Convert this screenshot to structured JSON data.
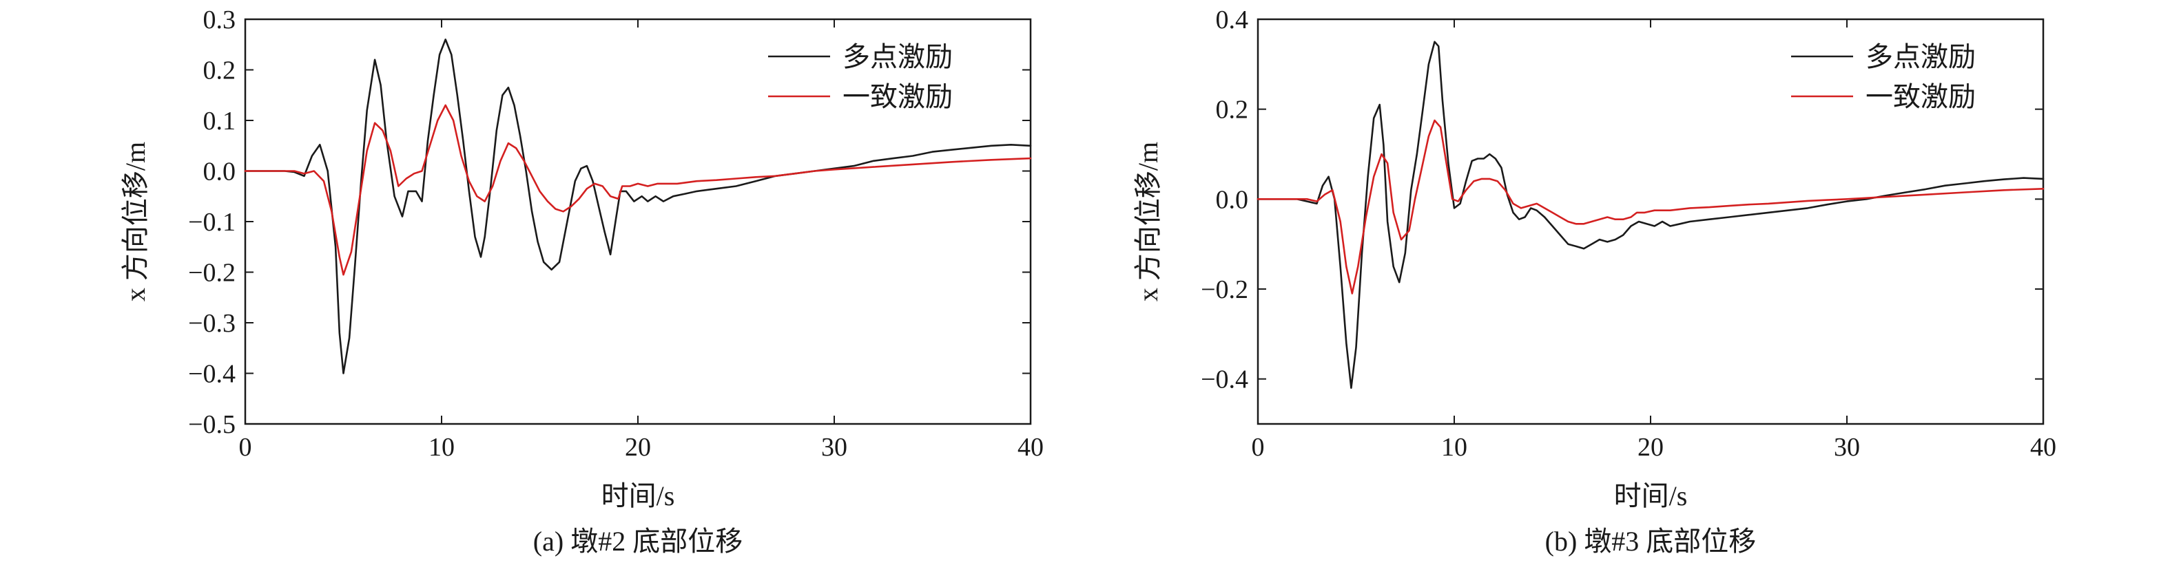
{
  "colors": {
    "multi": "#1a1a1a",
    "uniform": "#d42020",
    "axis": "#1a1a1a"
  },
  "chart_data": [
    {
      "type": "line",
      "caption": "(a) 墩#2 底部位移",
      "xlabel": "时间/s",
      "ylabel": "x 方向位移/m",
      "xlim": [
        0,
        40
      ],
      "ylim": [
        -0.5,
        0.3
      ],
      "xticks": [
        0,
        10,
        20,
        30,
        40
      ],
      "xtick_labels": [
        "0",
        "10",
        "20",
        "30",
        "40"
      ],
      "yticks": [
        0.3,
        0.2,
        0.1,
        0.0,
        -0.1,
        -0.2,
        -0.3,
        -0.4,
        -0.5
      ],
      "ytick_labels": [
        "0.3",
        "0.2",
        "0.1",
        "0.0",
        "−0.1",
        "−0.2",
        "−0.3",
        "−0.4",
        "−0.5"
      ],
      "legend": "top-right",
      "series": [
        {
          "name": "多点激励",
          "key": "multi",
          "x": [
            0,
            2.0,
            2.5,
            3.0,
            3.4,
            3.8,
            4.2,
            4.6,
            4.8,
            5.0,
            5.3,
            5.6,
            5.9,
            6.2,
            6.6,
            6.9,
            7.2,
            7.6,
            8.0,
            8.3,
            8.7,
            9.0,
            9.3,
            9.6,
            9.9,
            10.2,
            10.5,
            10.8,
            11.1,
            11.4,
            11.7,
            12.0,
            12.2,
            12.5,
            12.8,
            13.1,
            13.4,
            13.7,
            14.0,
            14.3,
            14.6,
            14.9,
            15.2,
            15.6,
            16.0,
            16.4,
            16.8,
            17.1,
            17.4,
            17.7,
            18.0,
            18.3,
            18.6,
            18.9,
            19.1,
            19.4,
            19.8,
            20.2,
            20.5,
            20.9,
            21.3,
            21.8,
            22.4,
            23.0,
            24.0,
            25.0,
            26.0,
            27.0,
            28.0,
            29.0,
            30.0,
            31.0,
            32.0,
            33.0,
            34.0,
            35.0,
            36.0,
            37.0,
            38.0,
            39.0,
            40.0
          ],
          "y": [
            0.0,
            0.0,
            -0.002,
            -0.01,
            0.03,
            0.052,
            0.0,
            -0.15,
            -0.32,
            -0.4,
            -0.33,
            -0.18,
            -0.02,
            0.12,
            0.22,
            0.17,
            0.06,
            -0.05,
            -0.09,
            -0.04,
            -0.04,
            -0.06,
            0.06,
            0.15,
            0.23,
            0.26,
            0.23,
            0.15,
            0.06,
            -0.04,
            -0.13,
            -0.17,
            -0.13,
            -0.03,
            0.08,
            0.15,
            0.165,
            0.13,
            0.07,
            0.0,
            -0.08,
            -0.14,
            -0.18,
            -0.195,
            -0.18,
            -0.1,
            -0.02,
            0.005,
            0.01,
            -0.02,
            -0.07,
            -0.12,
            -0.165,
            -0.09,
            -0.04,
            -0.04,
            -0.06,
            -0.05,
            -0.06,
            -0.05,
            -0.06,
            -0.05,
            -0.045,
            -0.04,
            -0.035,
            -0.03,
            -0.02,
            -0.01,
            -0.005,
            0.0,
            0.005,
            0.01,
            0.02,
            0.025,
            0.03,
            0.038,
            0.042,
            0.046,
            0.05,
            0.052,
            0.05
          ]
        },
        {
          "name": "一致激励",
          "key": "uniform",
          "x": [
            0,
            2.5,
            3.0,
            3.5,
            4.0,
            4.4,
            4.8,
            5.0,
            5.4,
            5.8,
            6.2,
            6.6,
            7.0,
            7.4,
            7.8,
            8.2,
            8.6,
            9.0,
            9.4,
            9.8,
            10.2,
            10.6,
            11.0,
            11.4,
            11.8,
            12.2,
            12.6,
            13.0,
            13.4,
            13.8,
            14.2,
            14.6,
            15.0,
            15.4,
            15.8,
            16.2,
            16.6,
            17.0,
            17.4,
            17.8,
            18.2,
            18.6,
            19.0,
            19.2,
            19.6,
            20.0,
            20.5,
            21.0,
            22.0,
            23.0,
            24.0,
            25.0,
            26.0,
            27.0,
            28.0,
            29.0,
            30.0,
            32.0,
            34.0,
            36.0,
            38.0,
            40.0
          ],
          "y": [
            0.0,
            0.0,
            -0.005,
            0.0,
            -0.02,
            -0.08,
            -0.17,
            -0.205,
            -0.16,
            -0.06,
            0.04,
            0.095,
            0.08,
            0.04,
            -0.03,
            -0.015,
            -0.005,
            0.0,
            0.05,
            0.1,
            0.13,
            0.1,
            0.03,
            -0.02,
            -0.05,
            -0.06,
            -0.03,
            0.02,
            0.055,
            0.045,
            0.02,
            -0.01,
            -0.04,
            -0.06,
            -0.075,
            -0.08,
            -0.07,
            -0.055,
            -0.035,
            -0.025,
            -0.03,
            -0.05,
            -0.055,
            -0.03,
            -0.03,
            -0.025,
            -0.03,
            -0.025,
            -0.025,
            -0.02,
            -0.018,
            -0.015,
            -0.012,
            -0.01,
            -0.005,
            0.0,
            0.003,
            0.008,
            0.013,
            0.018,
            0.022,
            0.025
          ]
        }
      ]
    },
    {
      "type": "line",
      "caption": "(b) 墩#3 底部位移",
      "xlabel": "时间/s",
      "ylabel": "x 方向位移/m",
      "xlim": [
        0,
        40
      ],
      "ylim": [
        -0.5,
        0.4
      ],
      "xticks": [
        0,
        10,
        20,
        30,
        40
      ],
      "xtick_labels": [
        "0",
        "10",
        "20",
        "30",
        "40"
      ],
      "yticks": [
        0.4,
        0.2,
        0.0,
        -0.2,
        -0.4
      ],
      "ytick_labels": [
        "0.4",
        "0.2",
        "0.0",
        "−0.2",
        "−0.4"
      ],
      "legend": "top-right",
      "series": [
        {
          "name": "多点激励",
          "key": "multi",
          "x": [
            0,
            2.0,
            2.5,
            3.0,
            3.3,
            3.6,
            3.9,
            4.2,
            4.5,
            4.75,
            5.0,
            5.3,
            5.6,
            5.9,
            6.2,
            6.4,
            6.6,
            6.9,
            7.2,
            7.5,
            7.8,
            8.1,
            8.4,
            8.7,
            9.0,
            9.2,
            9.4,
            9.7,
            10.0,
            10.3,
            10.6,
            10.9,
            11.2,
            11.5,
            11.8,
            12.1,
            12.4,
            12.7,
            13.0,
            13.3,
            13.6,
            13.9,
            14.2,
            14.6,
            15.0,
            15.4,
            15.8,
            16.2,
            16.6,
            17.0,
            17.4,
            17.8,
            18.2,
            18.6,
            19.0,
            19.4,
            19.8,
            20.2,
            20.6,
            21.0,
            21.5,
            22.0,
            23.0,
            24.0,
            25.0,
            26.0,
            27.0,
            28.0,
            29.0,
            30.0,
            31.0,
            32.0,
            33.0,
            34.0,
            35.0,
            36.0,
            37.0,
            38.0,
            39.0,
            40.0
          ],
          "y": [
            0.0,
            0.0,
            -0.005,
            -0.01,
            0.03,
            0.05,
            0.0,
            -0.15,
            -0.32,
            -0.42,
            -0.33,
            -0.12,
            0.05,
            0.18,
            0.21,
            0.12,
            -0.05,
            -0.15,
            -0.185,
            -0.12,
            0.02,
            0.1,
            0.2,
            0.3,
            0.35,
            0.34,
            0.22,
            0.08,
            -0.02,
            -0.01,
            0.04,
            0.085,
            0.09,
            0.09,
            0.1,
            0.09,
            0.07,
            0.01,
            -0.03,
            -0.045,
            -0.04,
            -0.02,
            -0.025,
            -0.04,
            -0.06,
            -0.08,
            -0.1,
            -0.105,
            -0.11,
            -0.1,
            -0.09,
            -0.095,
            -0.09,
            -0.08,
            -0.06,
            -0.05,
            -0.055,
            -0.06,
            -0.05,
            -0.06,
            -0.055,
            -0.05,
            -0.045,
            -0.04,
            -0.035,
            -0.03,
            -0.025,
            -0.02,
            -0.012,
            -0.005,
            0.0,
            0.008,
            0.015,
            0.022,
            0.03,
            0.035,
            0.04,
            0.044,
            0.047,
            0.045
          ]
        },
        {
          "name": "一致激励",
          "key": "uniform",
          "x": [
            0,
            2.5,
            3.0,
            3.4,
            3.8,
            4.2,
            4.5,
            4.8,
            5.1,
            5.5,
            5.9,
            6.3,
            6.6,
            6.9,
            7.3,
            7.7,
            8.0,
            8.3,
            8.7,
            9.0,
            9.3,
            9.6,
            9.9,
            10.2,
            10.6,
            11.0,
            11.4,
            11.8,
            12.2,
            12.6,
            13.0,
            13.4,
            13.8,
            14.2,
            14.6,
            15.0,
            15.4,
            15.8,
            16.2,
            16.6,
            17.0,
            17.4,
            17.8,
            18.2,
            18.6,
            19.0,
            19.3,
            19.7,
            20.2,
            21.0,
            22.0,
            23.0,
            24.0,
            25.0,
            26.0,
            27.0,
            28.0,
            29.0,
            30.0,
            32.0,
            34.0,
            36.0,
            38.0,
            40.0
          ],
          "y": [
            0.0,
            0.0,
            -0.005,
            0.01,
            0.02,
            -0.05,
            -0.15,
            -0.21,
            -0.15,
            -0.04,
            0.05,
            0.1,
            0.08,
            -0.03,
            -0.09,
            -0.07,
            0.0,
            0.06,
            0.14,
            0.175,
            0.16,
            0.08,
            0.0,
            -0.005,
            0.02,
            0.04,
            0.045,
            0.045,
            0.04,
            0.02,
            -0.01,
            -0.02,
            -0.015,
            -0.01,
            -0.02,
            -0.03,
            -0.04,
            -0.05,
            -0.055,
            -0.055,
            -0.05,
            -0.045,
            -0.04,
            -0.045,
            -0.045,
            -0.04,
            -0.03,
            -0.03,
            -0.025,
            -0.025,
            -0.02,
            -0.018,
            -0.015,
            -0.012,
            -0.01,
            -0.007,
            -0.004,
            -0.002,
            0.0,
            0.005,
            0.01,
            0.015,
            0.02,
            0.023
          ]
        }
      ]
    }
  ]
}
